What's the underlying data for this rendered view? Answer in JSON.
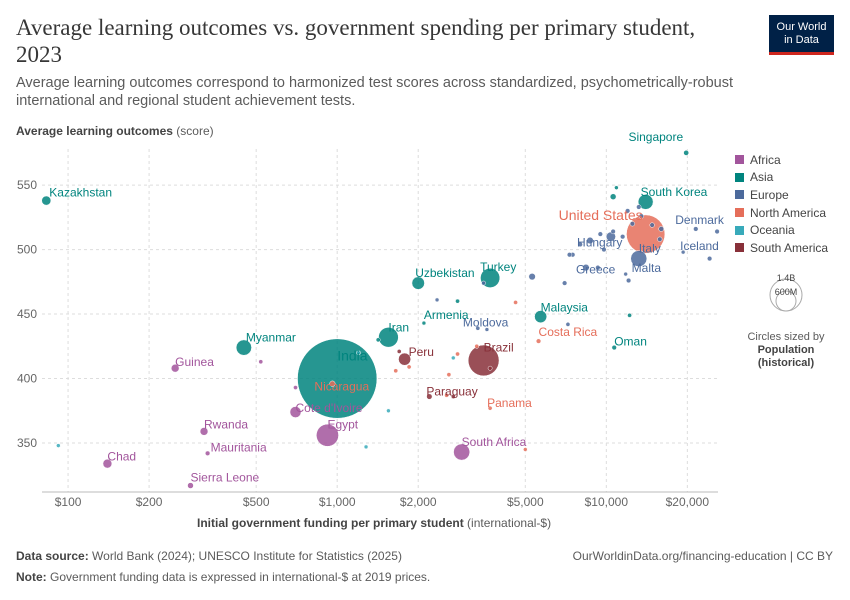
{
  "header": {
    "title": "Average learning outcomes vs. government spending per primary student, 2023",
    "subtitle": "Average learning outcomes correspond to harmonized test scores across standardized, psychometrically-robust international and regional student achievement tests.",
    "logo_line1": "Our World",
    "logo_line2": "in Data"
  },
  "axes": {
    "y_title": "Average learning outcomes",
    "y_unit": "(score)",
    "x_title": "Initial government funding per primary student",
    "x_unit": "(international-$)"
  },
  "legend": {
    "regions": [
      {
        "name": "Africa",
        "color": "#a2559c"
      },
      {
        "name": "Asia",
        "color": "#00847e"
      },
      {
        "name": "Europe",
        "color": "#4c6a9c"
      },
      {
        "name": "North America",
        "color": "#e56e5a"
      },
      {
        "name": "Oceania",
        "color": "#38aaba"
      },
      {
        "name": "South America",
        "color": "#883039"
      }
    ],
    "size_top": "1.4B",
    "size_mid": "600M",
    "size_note": "Circles sized by",
    "size_var_1": "Population",
    "size_var_2": "(historical)"
  },
  "footer": {
    "source_label": "Data source:",
    "source_text": "World Bank (2024); UNESCO Institute for Statistics (2025)",
    "url_text": "OurWorldinData.org/financing-education | CC BY",
    "note_label": "Note:",
    "note_text": "Government funding data is expressed in international-$ at 2019 prices."
  },
  "chart_data": {
    "type": "scatter",
    "x_scale": "log",
    "xlim": [
      80,
      26000
    ],
    "ylim": [
      312,
      578
    ],
    "x_ticks": [
      100,
      200,
      500,
      1000,
      2000,
      5000,
      10000,
      20000
    ],
    "x_tick_labels": [
      "$100",
      "$200",
      "$500",
      "$1,000",
      "$2,000",
      "$5,000",
      "$10,000",
      "$20,000"
    ],
    "y_ticks": [
      350,
      400,
      450,
      500,
      550
    ],
    "y_tick_labels": [
      "350",
      "400",
      "450",
      "500",
      "550"
    ],
    "grid": true,
    "points": [
      {
        "label": "Kazakhstan",
        "x": 83,
        "y": 538,
        "pop": 19,
        "region": "Asia"
      },
      {
        "label": "Singapore",
        "x": 19800,
        "y": 575,
        "pop": 6,
        "region": "Asia"
      },
      {
        "label": "South Korea",
        "x": 14000,
        "y": 537,
        "pop": 51,
        "region": "Asia"
      },
      {
        "label": "United States",
        "x": 14000,
        "y": 512,
        "pop": 335,
        "region": "North America"
      },
      {
        "label": "Denmark",
        "x": 16000,
        "y": 516,
        "pop": 6,
        "region": "Europe"
      },
      {
        "label": "Iceland",
        "x": 19300,
        "y": 498,
        "pop": 0.4,
        "region": "Europe"
      },
      {
        "label": "Hungary",
        "x": 8700,
        "y": 507,
        "pop": 10,
        "region": "Europe"
      },
      {
        "label": "Italy",
        "x": 13200,
        "y": 493,
        "pop": 59,
        "region": "Europe"
      },
      {
        "label": "Greece",
        "x": 8400,
        "y": 486,
        "pop": 10,
        "region": "Europe"
      },
      {
        "label": "Malta",
        "x": 11800,
        "y": 481,
        "pop": 0.5,
        "region": "Europe"
      },
      {
        "label": "Uzbekistan",
        "x": 2000,
        "y": 474,
        "pop": 36,
        "region": "Asia"
      },
      {
        "label": "Turkey",
        "x": 3700,
        "y": 478,
        "pop": 85,
        "region": "Asia"
      },
      {
        "label": "Malaysia",
        "x": 5700,
        "y": 448,
        "pop": 34,
        "region": "Asia"
      },
      {
        "label": "Moldova",
        "x": 3600,
        "y": 438,
        "pop": 2.5,
        "region": "Europe"
      },
      {
        "label": "Armenia",
        "x": 2100,
        "y": 443,
        "pop": 3,
        "region": "Asia"
      },
      {
        "label": "Iran",
        "x": 1550,
        "y": 432,
        "pop": 89,
        "region": "Asia"
      },
      {
        "label": "Costa Rica",
        "x": 5600,
        "y": 429,
        "pop": 5,
        "region": "North America"
      },
      {
        "label": "Oman",
        "x": 10700,
        "y": 424,
        "pop": 5,
        "region": "Asia"
      },
      {
        "label": "Myanmar",
        "x": 450,
        "y": 424,
        "pop": 54,
        "region": "Asia"
      },
      {
        "label": "Peru",
        "x": 1780,
        "y": 415,
        "pop": 34,
        "region": "South America"
      },
      {
        "label": "Brazil",
        "x": 3500,
        "y": 414,
        "pop": 216,
        "region": "South America"
      },
      {
        "label": "India",
        "x": 1000,
        "y": 400,
        "pop": 1430,
        "region": "Asia"
      },
      {
        "label": "Nicaragua",
        "x": 960,
        "y": 396,
        "pop": 7,
        "region": "North America"
      },
      {
        "label": "Guinea",
        "x": 250,
        "y": 408,
        "pop": 14,
        "region": "Africa"
      },
      {
        "label": "Paraguay",
        "x": 2200,
        "y": 386,
        "pop": 7,
        "region": "South America"
      },
      {
        "label": "Panama",
        "x": 3700,
        "y": 377,
        "pop": 4,
        "region": "North America"
      },
      {
        "label": "Cote d'Ivoire",
        "x": 700,
        "y": 374,
        "pop": 28,
        "region": "Africa"
      },
      {
        "label": "Egypt",
        "x": 920,
        "y": 356,
        "pop": 112,
        "region": "Africa"
      },
      {
        "label": "Rwanda",
        "x": 320,
        "y": 359,
        "pop": 14,
        "region": "Africa"
      },
      {
        "label": "Mauritania",
        "x": 330,
        "y": 342,
        "pop": 5,
        "region": "Africa"
      },
      {
        "label": "South Africa",
        "x": 2900,
        "y": 343,
        "pop": 60,
        "region": "Africa"
      },
      {
        "label": "Chad",
        "x": 140,
        "y": 334,
        "pop": 18,
        "region": "Africa"
      },
      {
        "label": "Sierra Leone",
        "x": 285,
        "y": 317,
        "pop": 8,
        "region": "Africa"
      },
      {
        "label": "",
        "x": 92,
        "y": 348,
        "pop": 1,
        "region": "Oceania"
      },
      {
        "label": "",
        "x": 1280,
        "y": 347,
        "pop": 1,
        "region": "Oceania"
      },
      {
        "label": "",
        "x": 1550,
        "y": 375,
        "pop": 1,
        "region": "Oceania"
      },
      {
        "label": "",
        "x": 2700,
        "y": 416,
        "pop": 1,
        "region": "Oceania"
      },
      {
        "label": "",
        "x": 1200,
        "y": 420,
        "pop": 1,
        "region": "Oceania"
      },
      {
        "label": "",
        "x": 10600,
        "y": 541,
        "pop": 8,
        "region": "Asia"
      },
      {
        "label": "",
        "x": 10900,
        "y": 548,
        "pop": 1,
        "region": "Asia"
      },
      {
        "label": "",
        "x": 12200,
        "y": 449,
        "pop": 4,
        "region": "Asia"
      },
      {
        "label": "",
        "x": 1420,
        "y": 430,
        "pop": 4,
        "region": "Asia"
      },
      {
        "label": "",
        "x": 2800,
        "y": 460,
        "pop": 4,
        "region": "Asia"
      },
      {
        "label": "",
        "x": 12000,
        "y": 530,
        "pop": 5,
        "region": "Europe"
      },
      {
        "label": "",
        "x": 12500,
        "y": 520,
        "pop": 5,
        "region": "Europe"
      },
      {
        "label": "",
        "x": 13500,
        "y": 526,
        "pop": 5,
        "region": "Europe"
      },
      {
        "label": "",
        "x": 14800,
        "y": 519,
        "pop": 5,
        "region": "Europe"
      },
      {
        "label": "",
        "x": 13200,
        "y": 533,
        "pop": 5,
        "region": "Europe"
      },
      {
        "label": "",
        "x": 10600,
        "y": 514,
        "pop": 5,
        "region": "Europe"
      },
      {
        "label": "",
        "x": 9500,
        "y": 512,
        "pop": 5,
        "region": "Europe"
      },
      {
        "label": "",
        "x": 11500,
        "y": 510,
        "pop": 5,
        "region": "Europe"
      },
      {
        "label": "",
        "x": 10400,
        "y": 510,
        "pop": 20,
        "region": "Europe"
      },
      {
        "label": "",
        "x": 8000,
        "y": 504,
        "pop": 5,
        "region": "Europe"
      },
      {
        "label": "",
        "x": 7500,
        "y": 496,
        "pop": 5,
        "region": "Europe"
      },
      {
        "label": "",
        "x": 9800,
        "y": 500,
        "pop": 5,
        "region": "Europe"
      },
      {
        "label": "",
        "x": 15800,
        "y": 508,
        "pop": 5,
        "region": "Europe"
      },
      {
        "label": "",
        "x": 21500,
        "y": 516,
        "pop": 5,
        "region": "Europe"
      },
      {
        "label": "",
        "x": 25800,
        "y": 514,
        "pop": 5,
        "region": "Europe"
      },
      {
        "label": "",
        "x": 24200,
        "y": 493,
        "pop": 5,
        "region": "Europe"
      },
      {
        "label": "",
        "x": 7300,
        "y": 496,
        "pop": 5,
        "region": "Europe"
      },
      {
        "label": "",
        "x": 7000,
        "y": 474,
        "pop": 5,
        "region": "Europe"
      },
      {
        "label": "",
        "x": 9300,
        "y": 486,
        "pop": 5,
        "region": "Europe"
      },
      {
        "label": "",
        "x": 12100,
        "y": 476,
        "pop": 5,
        "region": "Europe"
      },
      {
        "label": "",
        "x": 5300,
        "y": 479,
        "pop": 10,
        "region": "Europe"
      },
      {
        "label": "",
        "x": 7200,
        "y": 442,
        "pop": 4,
        "region": "Europe"
      },
      {
        "label": "",
        "x": 3500,
        "y": 474,
        "pop": 4,
        "region": "Europe"
      },
      {
        "label": "",
        "x": 2350,
        "y": 461,
        "pop": 3,
        "region": "Europe"
      },
      {
        "label": "",
        "x": 3330,
        "y": 439,
        "pop": 4,
        "region": "Europe"
      },
      {
        "label": "",
        "x": 3700,
        "y": 408,
        "pop": 4,
        "region": "South America"
      },
      {
        "label": "",
        "x": 1700,
        "y": 421,
        "pop": 4,
        "region": "South America"
      },
      {
        "label": "",
        "x": 2700,
        "y": 386,
        "pop": 4,
        "region": "South America"
      },
      {
        "label": "",
        "x": 1650,
        "y": 406,
        "pop": 4,
        "region": "North America"
      },
      {
        "label": "",
        "x": 1850,
        "y": 409,
        "pop": 4,
        "region": "North America"
      },
      {
        "label": "",
        "x": 2600,
        "y": 403,
        "pop": 4,
        "region": "North America"
      },
      {
        "label": "",
        "x": 2800,
        "y": 419,
        "pop": 4,
        "region": "North America"
      },
      {
        "label": "",
        "x": 4600,
        "y": 459,
        "pop": 4,
        "region": "North America"
      },
      {
        "label": "",
        "x": 2550,
        "y": 387,
        "pop": 4,
        "region": "North America"
      },
      {
        "label": "",
        "x": 3300,
        "y": 425,
        "pop": 4,
        "region": "North America"
      },
      {
        "label": "",
        "x": 5000,
        "y": 345,
        "pop": 2,
        "region": "North America"
      },
      {
        "label": "",
        "x": 700,
        "y": 393,
        "pop": 4,
        "region": "Africa"
      },
      {
        "label": "",
        "x": 520,
        "y": 413,
        "pop": 4,
        "region": "Africa"
      }
    ]
  }
}
